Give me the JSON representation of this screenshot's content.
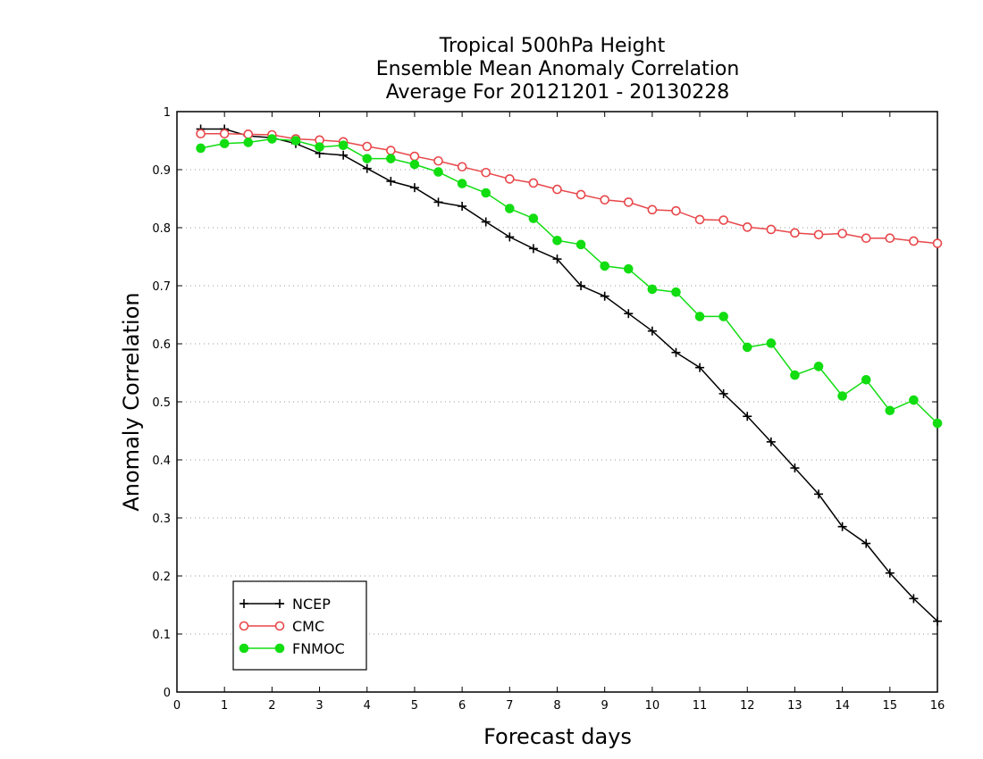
{
  "chart_data": {
    "type": "line",
    "title_lines": [
      "Tropical 500hPa Height",
      "Ensemble Mean Anomaly Correlation",
      "Average For 20121201 - 20130228"
    ],
    "xlabel": "Forecast days",
    "ylabel": "Anomaly Correlation",
    "xlim": [
      0,
      16
    ],
    "ylim": [
      0,
      1
    ],
    "x_ticks": [
      0,
      1,
      2,
      3,
      4,
      5,
      6,
      7,
      8,
      9,
      10,
      11,
      12,
      13,
      14,
      15,
      16
    ],
    "y_ticks": [
      0,
      0.1,
      0.2,
      0.3,
      0.4,
      0.5,
      0.6,
      0.7,
      0.8,
      0.9,
      1
    ],
    "y_tick_labels": [
      "0",
      "0.1",
      "0.2",
      "0.3",
      "0.4",
      "0.5",
      "0.6",
      "0.7",
      "0.8",
      "0.9",
      "1"
    ],
    "grid": "horizontal dotted",
    "legend_position": "bottom-left",
    "x": [
      0.5,
      1,
      1.5,
      2,
      2.5,
      3,
      3.5,
      4,
      4.5,
      5,
      5.5,
      6,
      6.5,
      7,
      7.5,
      8,
      8.5,
      9,
      9.5,
      10,
      10.5,
      11,
      11.5,
      12,
      12.5,
      13,
      13.5,
      14,
      14.5,
      15,
      15.5,
      16
    ],
    "series": [
      {
        "name": "NCEP",
        "color": "#000000",
        "marker": "plus",
        "values": [
          0.97,
          0.97,
          0.958,
          0.955,
          0.945,
          0.928,
          0.925,
          0.902,
          0.88,
          0.869,
          0.844,
          0.837,
          0.81,
          0.784,
          0.764,
          0.746,
          0.7,
          0.682,
          0.652,
          0.622,
          0.585,
          0.559,
          0.514,
          0.475,
          0.431,
          0.386,
          0.341,
          0.285,
          0.256,
          0.205,
          0.161,
          0.122
        ]
      },
      {
        "name": "CMC",
        "color": "#e8474a",
        "marker": "open-circle",
        "values": [
          0.962,
          0.962,
          0.961,
          0.96,
          0.953,
          0.951,
          0.948,
          0.94,
          0.933,
          0.923,
          0.915,
          0.905,
          0.895,
          0.884,
          0.877,
          0.866,
          0.857,
          0.848,
          0.844,
          0.831,
          0.829,
          0.814,
          0.813,
          0.801,
          0.797,
          0.791,
          0.788,
          0.79,
          0.782,
          0.782,
          0.777,
          0.773
        ]
      },
      {
        "name": "FNMOC",
        "color": "#11dd11",
        "marker": "filled-circle",
        "values": [
          0.937,
          0.945,
          0.947,
          0.953,
          0.95,
          0.939,
          0.942,
          0.919,
          0.919,
          0.909,
          0.896,
          0.876,
          0.86,
          0.833,
          0.816,
          0.778,
          0.771,
          0.734,
          0.729,
          0.694,
          0.689,
          0.647,
          0.647,
          0.594,
          0.601,
          0.546,
          0.561,
          0.51,
          0.538,
          0.485,
          0.503,
          0.463
        ]
      }
    ]
  }
}
